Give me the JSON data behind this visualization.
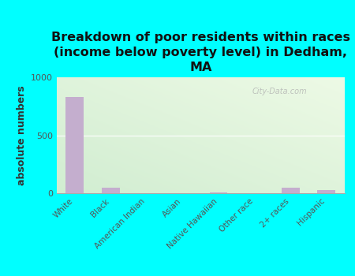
{
  "categories": [
    "White",
    "Black",
    "American Indian",
    "Asian",
    "Native Hawaiian",
    "Other race",
    "2+ races",
    "Hispanic"
  ],
  "values": [
    830,
    50,
    0,
    0,
    10,
    0,
    50,
    25
  ],
  "bar_color": "#c4aece",
  "title": "Breakdown of poor residents within races\n(income below poverty level) in Dedham,\nMA",
  "ylabel": "absolute numbers",
  "ylim": [
    0,
    1000
  ],
  "yticks": [
    0,
    500,
    1000
  ],
  "background_color": "#00ffff",
  "watermark": "City-Data.com",
  "title_fontsize": 11.5,
  "ylabel_fontsize": 9
}
